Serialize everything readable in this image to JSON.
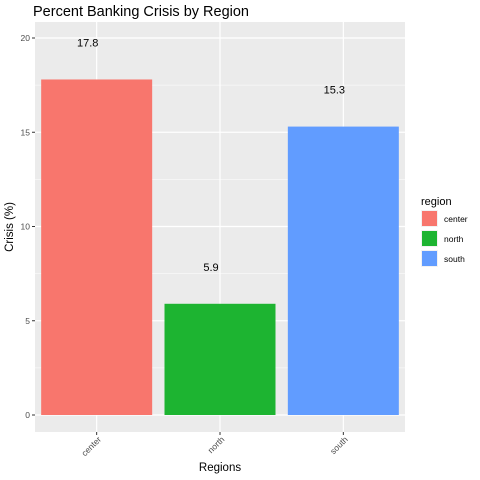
{
  "chart_data": {
    "type": "bar",
    "title": "Percent Banking Crisis by Region",
    "xlabel": "Regions",
    "ylabel": "Crisis (%)",
    "categories": [
      "center",
      "north",
      "south"
    ],
    "values": [
      17.8,
      5.9,
      15.3
    ],
    "data_labels": [
      "17.8",
      "5.9",
      "15.3"
    ],
    "colors": [
      "#F8766D",
      "#1DB431",
      "#619CFF"
    ],
    "ylim": [
      0,
      21
    ],
    "yticks": [
      0,
      5,
      10,
      15,
      20
    ],
    "ytick_labels": [
      "0",
      "5",
      "10",
      "15",
      "20"
    ],
    "grid": true,
    "panel_background": "#EBEBEB",
    "legend": {
      "title": "region",
      "position": "right",
      "entries": [
        "center",
        "north",
        "south"
      ]
    }
  }
}
